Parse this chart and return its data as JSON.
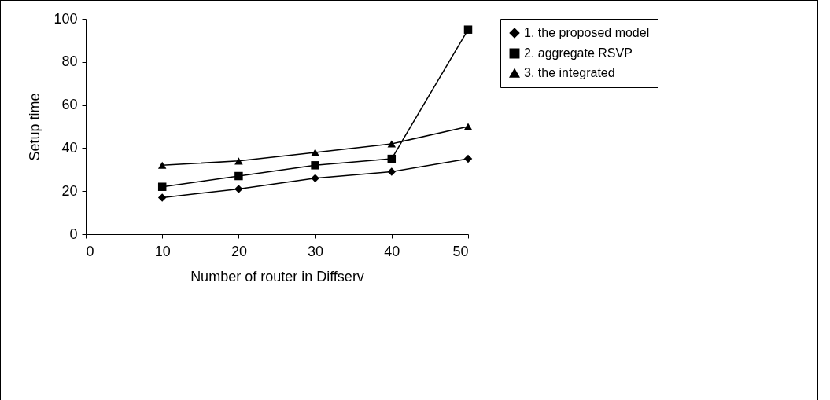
{
  "chart_data": {
    "type": "line",
    "xlabel": "Number of router in Diffserv",
    "ylabel": "Setup time",
    "x": [
      10,
      20,
      30,
      40,
      50
    ],
    "series": [
      {
        "name": "1. the proposed model",
        "color": "#000000",
        "marker": "diamond",
        "values": [
          17,
          21,
          26,
          29,
          35
        ]
      },
      {
        "name": "2. aggregate RSVP",
        "color": "#000000",
        "marker": "square",
        "values": [
          22,
          27,
          32,
          35,
          95
        ]
      },
      {
        "name": "3. the integrated",
        "color": "#000000",
        "marker": "triangle",
        "values": [
          32,
          34,
          38,
          42,
          50
        ]
      }
    ],
    "xlim": [
      0,
      50
    ],
    "xticks": [
      0,
      10,
      20,
      30,
      40,
      50
    ],
    "ylim": [
      0,
      100
    ],
    "yticks": [
      0,
      20,
      40,
      60,
      80,
      100
    ],
    "grid": false,
    "legend": "right",
    "line_style": "solid"
  }
}
